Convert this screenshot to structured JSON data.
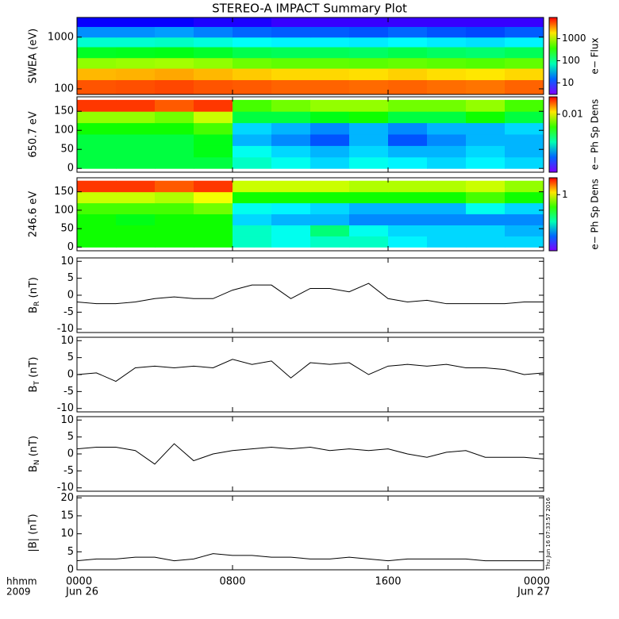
{
  "title": "STEREO-A IMPACT Summary Plot",
  "stamp": "Thu Jun 16 07:33:57 2016",
  "x_axis": {
    "xlim": [
      0,
      24
    ],
    "xticks": [
      {
        "value": 0,
        "label": "0000"
      },
      {
        "value": 8,
        "label": "0800"
      },
      {
        "value": 16,
        "label": "1600"
      },
      {
        "value": 24,
        "label": "0000"
      }
    ],
    "date_labels": [
      {
        "value": 0,
        "label": "Jun 26"
      },
      {
        "value": 24,
        "label": "Jun 27"
      }
    ],
    "row_labels": [
      "hhmm",
      "2009"
    ]
  },
  "chart_data": [
    {
      "type": "heatmap",
      "ylabel": "SWEA (eV)",
      "log": true,
      "ylim": [
        78,
        2400
      ],
      "yticks": [
        100,
        1000
      ],
      "xbins": [
        0,
        2,
        4,
        6,
        8,
        10,
        12,
        14,
        16,
        18,
        20,
        22,
        24
      ],
      "ybins": [
        78,
        150,
        250,
        400,
        650,
        1000,
        1600,
        2400
      ],
      "z": [
        [
          5000,
          5200,
          5500,
          5000,
          4800,
          4500,
          4500,
          4300,
          4500,
          4200,
          4000,
          4500
        ],
        [
          2500,
          2600,
          2800,
          2500,
          2200,
          2000,
          2000,
          1900,
          2100,
          1900,
          1800,
          2000
        ],
        [
          700,
          750,
          800,
          700,
          550,
          500,
          500,
          480,
          520,
          480,
          450,
          500
        ],
        [
          200,
          210,
          220,
          190,
          150,
          140,
          140,
          130,
          150,
          130,
          120,
          140
        ],
        [
          60,
          60,
          65,
          55,
          45,
          40,
          40,
          38,
          42,
          38,
          35,
          40
        ],
        [
          20,
          20,
          22,
          18,
          15,
          14,
          14,
          13,
          15,
          13,
          12,
          14
        ],
        [
          7,
          7,
          7,
          6,
          6,
          5,
          5,
          5,
          5,
          5,
          5,
          5
        ]
      ],
      "clim": [
        3,
        9000
      ],
      "cticks": [
        10,
        100,
        1000
      ],
      "clabel": "e− Flux"
    },
    {
      "type": "heatmap",
      "ylabel": "650.7 eV",
      "log": false,
      "ylim": [
        -10,
        188
      ],
      "yticks": [
        0,
        50,
        100,
        150
      ],
      "xbins": [
        0,
        2,
        4,
        6,
        8,
        10,
        12,
        14,
        16,
        18,
        20,
        22,
        24
      ],
      "ybins": [
        0,
        30,
        60,
        90,
        120,
        150,
        180
      ],
      "z": [
        [
          0.002,
          0.002,
          0.002,
          0.002,
          0.001,
          0.0008,
          0.0006,
          0.0008,
          0.0007,
          0.0006,
          0.0007,
          0.0006
        ],
        [
          0.002,
          0.002,
          0.002,
          0.0025,
          0.0008,
          0.0006,
          0.0005,
          0.0006,
          0.0005,
          0.0005,
          0.0006,
          0.0005
        ],
        [
          0.002,
          0.002,
          0.002,
          0.0025,
          0.0005,
          0.0004,
          0.0003,
          0.0005,
          0.0003,
          0.0004,
          0.0005,
          0.0005
        ],
        [
          0.003,
          0.003,
          0.003,
          0.004,
          0.0006,
          0.0005,
          0.0004,
          0.0005,
          0.0004,
          0.0005,
          0.0005,
          0.0006
        ],
        [
          0.006,
          0.006,
          0.005,
          0.008,
          0.002,
          0.002,
          0.0025,
          0.003,
          0.002,
          0.002,
          0.003,
          0.002
        ],
        [
          0.03,
          0.03,
          0.025,
          0.03,
          0.004,
          0.005,
          0.006,
          0.006,
          0.005,
          0.005,
          0.006,
          0.004
        ]
      ],
      "clim": [
        0.0001,
        0.04
      ],
      "cticks": [
        0.01
      ],
      "clabel": "e− Ph Sp Dens"
    },
    {
      "type": "heatmap",
      "ylabel": "246.6 eV",
      "log": false,
      "ylim": [
        -10,
        188
      ],
      "yticks": [
        0,
        50,
        100,
        150
      ],
      "xbins": [
        0,
        2,
        4,
        6,
        8,
        10,
        12,
        14,
        16,
        18,
        20,
        22,
        24
      ],
      "ybins": [
        0,
        30,
        60,
        90,
        120,
        150,
        180
      ],
      "z": [
        [
          0.3,
          0.3,
          0.3,
          0.3,
          0.1,
          0.08,
          0.1,
          0.1,
          0.07,
          0.06,
          0.06,
          0.06
        ],
        [
          0.3,
          0.3,
          0.3,
          0.3,
          0.1,
          0.08,
          0.15,
          0.08,
          0.06,
          0.06,
          0.06,
          0.05
        ],
        [
          0.3,
          0.25,
          0.3,
          0.3,
          0.06,
          0.05,
          0.05,
          0.04,
          0.04,
          0.04,
          0.04,
          0.04
        ],
        [
          0.4,
          0.4,
          0.4,
          0.5,
          0.08,
          0.07,
          0.06,
          0.05,
          0.05,
          0.05,
          0.08,
          0.06
        ],
        [
          0.8,
          0.8,
          0.7,
          1,
          0.3,
          0.3,
          0.3,
          0.3,
          0.3,
          0.3,
          0.4,
          0.3
        ],
        [
          3,
          3,
          2.5,
          3,
          0.8,
          0.8,
          0.8,
          0.7,
          0.7,
          0.7,
          0.8,
          0.6
        ]
      ],
      "clim": [
        0.01,
        4
      ],
      "cticks": [
        1
      ],
      "clabel": "e− Ph Sp Dens"
    },
    {
      "type": "line",
      "ylabel": {
        "base": "B",
        "sub": "R",
        "rest": " (nT)"
      },
      "ylim": [
        -11,
        11
      ],
      "yticks": [
        -10,
        -5,
        0,
        5,
        10
      ],
      "color": "#000000",
      "x": [
        0,
        1,
        2,
        3,
        4,
        5,
        6,
        7,
        8,
        9,
        10,
        11,
        12,
        13,
        14,
        15,
        16,
        17,
        18,
        19,
        20,
        21,
        22,
        23,
        24
      ],
      "values": [
        -2,
        -2.5,
        -2.5,
        -2,
        -1,
        -0.5,
        -1,
        -1,
        1.5,
        3,
        3,
        -1,
        2,
        2,
        1,
        3.5,
        -1,
        -2,
        -1.5,
        -2.5,
        -2.5,
        -2.5,
        -2.5,
        -2,
        -2
      ]
    },
    {
      "type": "line",
      "ylabel": {
        "base": "B",
        "sub": "T",
        "rest": " (nT)"
      },
      "ylim": [
        -11,
        11
      ],
      "yticks": [
        -10,
        -5,
        0,
        5,
        10
      ],
      "color": "#000000",
      "x": [
        0,
        1,
        2,
        3,
        4,
        5,
        6,
        7,
        8,
        9,
        10,
        11,
        12,
        13,
        14,
        15,
        16,
        17,
        18,
        19,
        20,
        21,
        22,
        23,
        24
      ],
      "values": [
        0,
        0.5,
        -2,
        2,
        2.5,
        2,
        2.5,
        2,
        4.5,
        3,
        4,
        -1,
        3.5,
        3,
        3.5,
        0,
        2.5,
        3,
        2.5,
        3,
        2,
        2,
        1.5,
        0,
        0.5
      ]
    },
    {
      "type": "line",
      "ylabel": {
        "base": "B",
        "sub": "N",
        "rest": " (nT)"
      },
      "ylim": [
        -11,
        11
      ],
      "yticks": [
        -10,
        -5,
        0,
        5,
        10
      ],
      "color": "#000000",
      "x": [
        0,
        1,
        2,
        3,
        4,
        5,
        6,
        7,
        8,
        9,
        10,
        11,
        12,
        13,
        14,
        15,
        16,
        17,
        18,
        19,
        20,
        21,
        22,
        23,
        24
      ],
      "values": [
        1.5,
        2,
        2,
        1,
        -3,
        3,
        -2,
        0,
        1,
        1.5,
        2,
        1.5,
        2,
        1,
        1.5,
        1,
        1.5,
        0,
        -1,
        0.5,
        1,
        -1,
        -1,
        -1,
        -1.5
      ]
    },
    {
      "type": "line",
      "ylabel": "|B| (nT)",
      "ylim": [
        0,
        20.5
      ],
      "yticks": [
        0,
        5,
        10,
        15,
        20
      ],
      "color": "#000000",
      "x": [
        0,
        1,
        2,
        3,
        4,
        5,
        6,
        7,
        8,
        9,
        10,
        11,
        12,
        13,
        14,
        15,
        16,
        17,
        18,
        19,
        20,
        21,
        22,
        23,
        24
      ],
      "values": [
        2.5,
        3,
        3,
        3.5,
        3.5,
        2.5,
        3,
        4.5,
        4,
        4,
        3.5,
        3.5,
        3,
        3,
        3.5,
        3,
        2.5,
        3,
        3,
        3,
        3,
        2.5,
        2.5,
        2.5,
        2.5
      ]
    }
  ]
}
